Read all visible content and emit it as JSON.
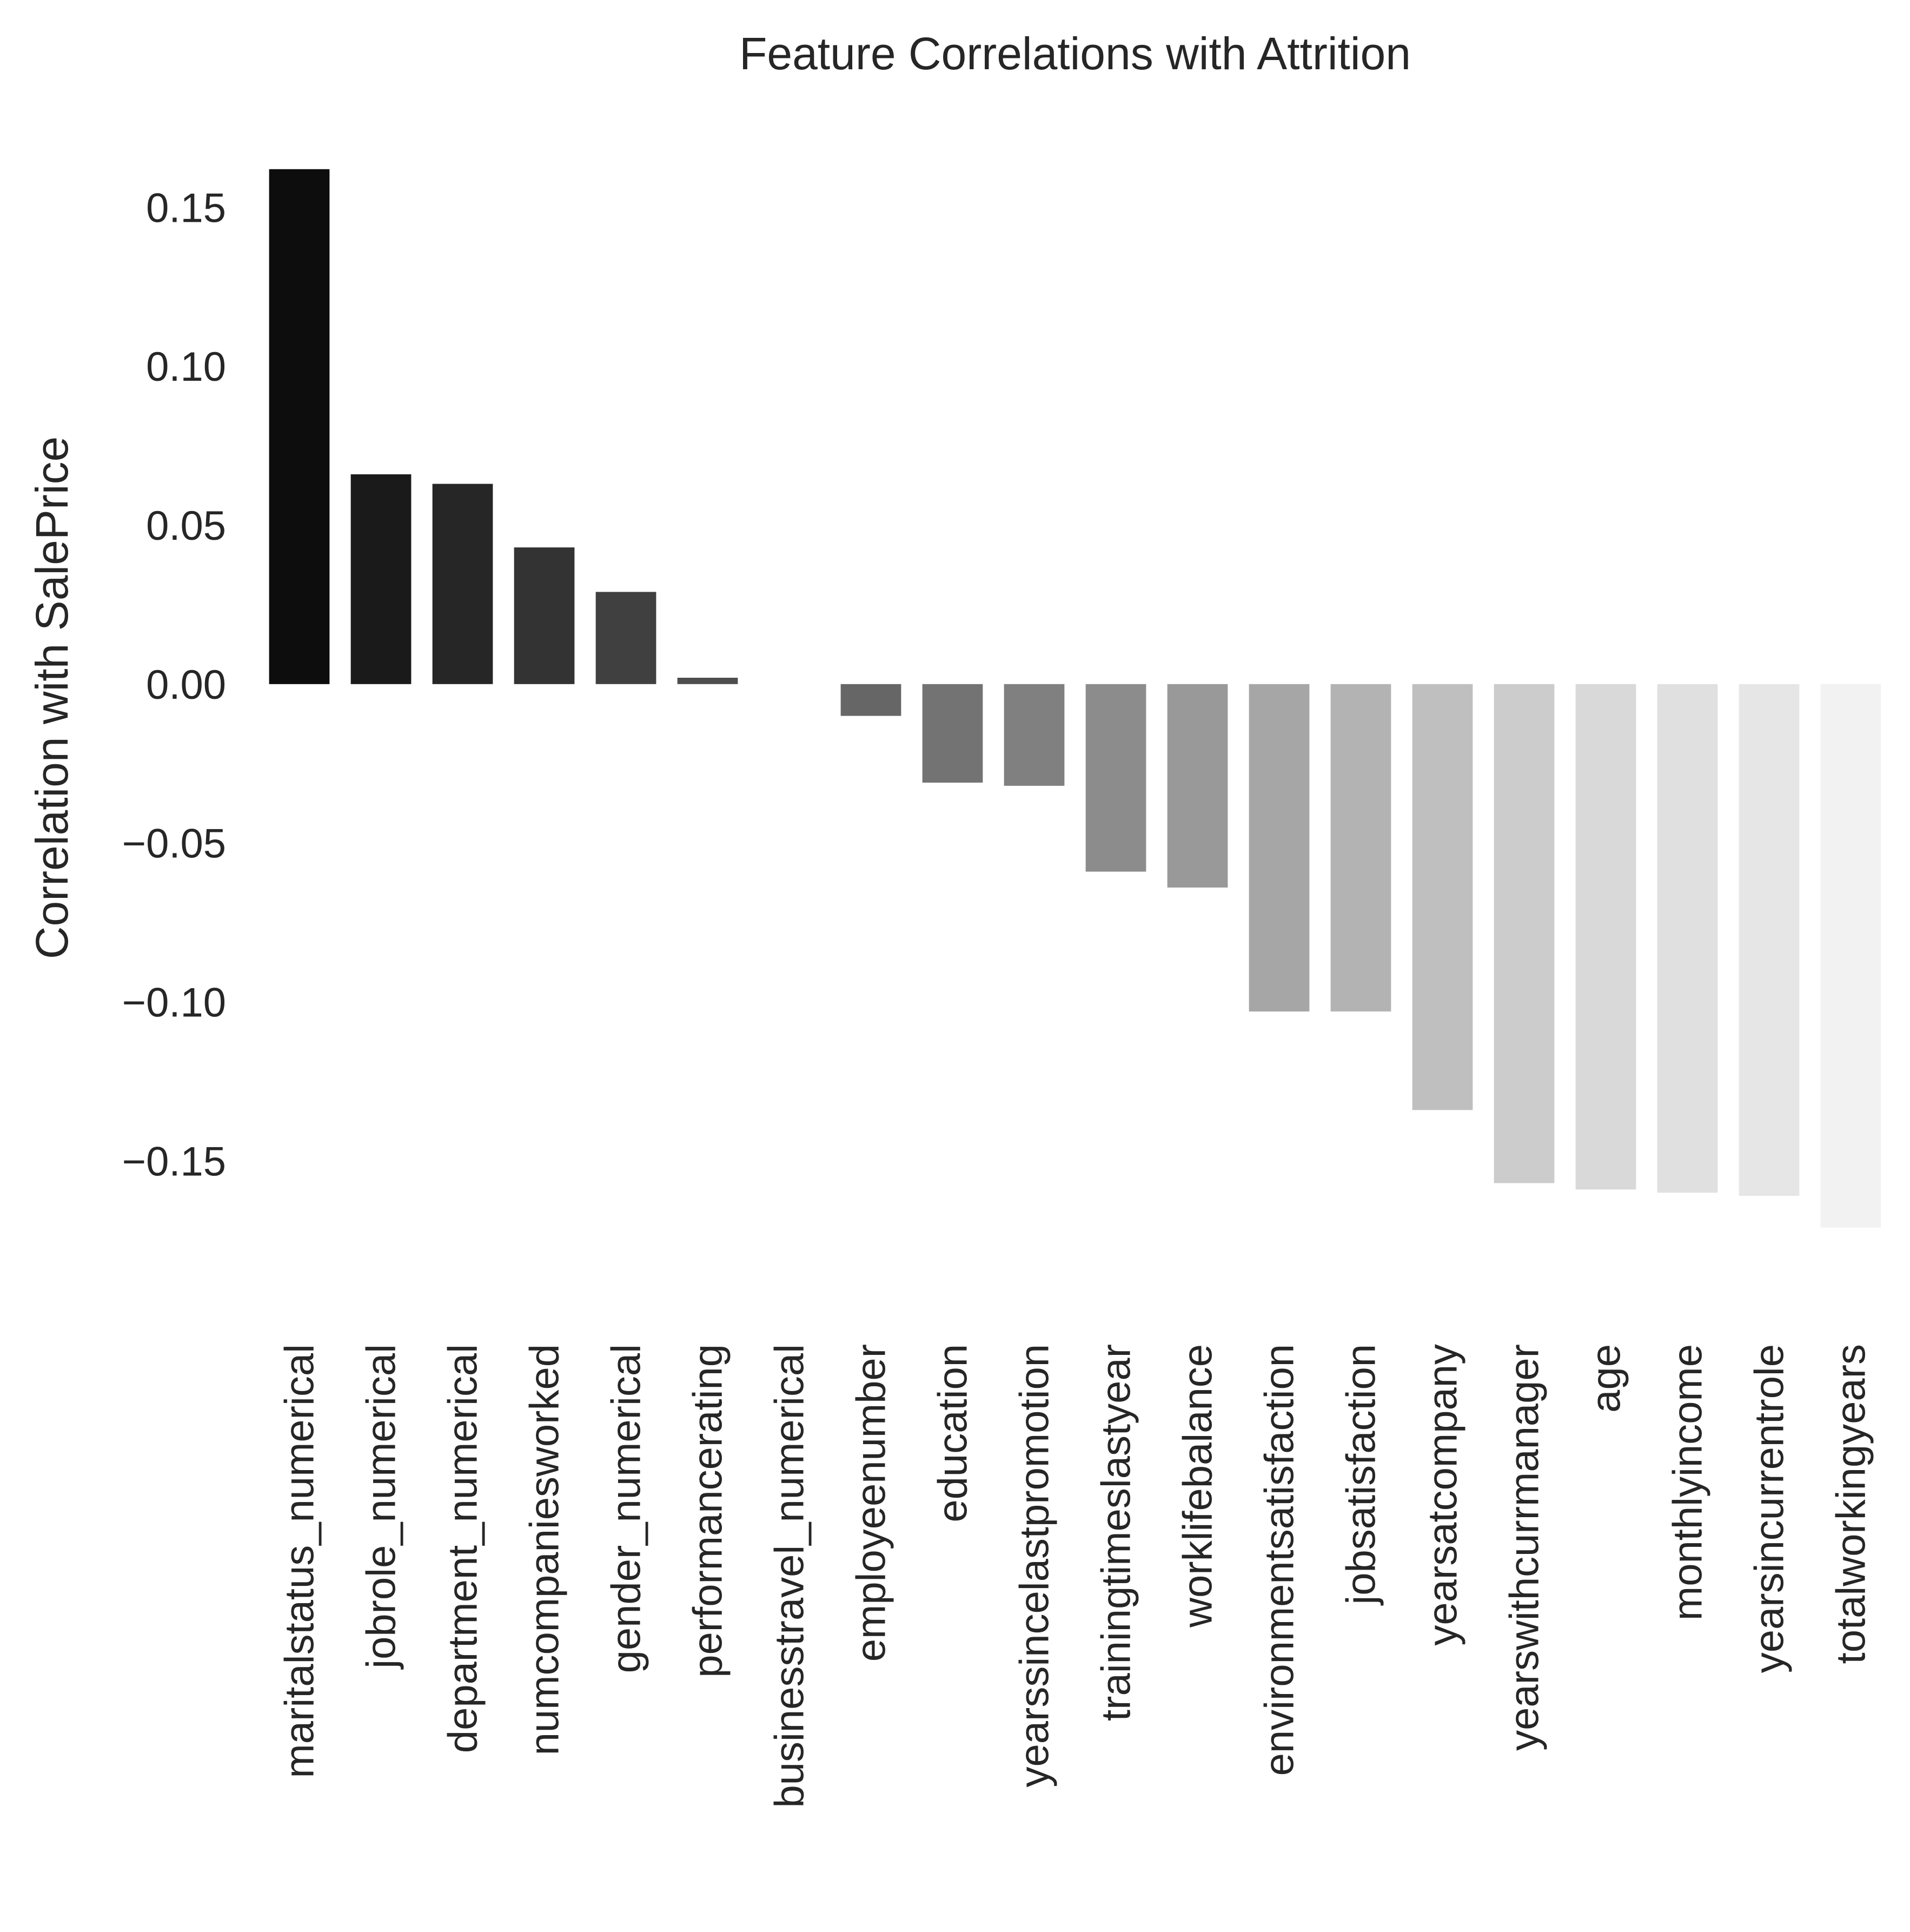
{
  "chart_data": {
    "type": "bar",
    "title": "Feature Correlations with Attrition",
    "xlabel": "",
    "ylabel": "Correlation with SalePrice",
    "ylim": [
      -0.185,
      0.172
    ],
    "yticks": [
      0.15,
      0.1,
      0.05,
      0.0,
      -0.05,
      -0.1,
      -0.15
    ],
    "ytick_labels": [
      "0.15",
      "0.10",
      "0.05",
      "0.00",
      "−0.05",
      "−0.10",
      "−0.15"
    ],
    "grid": false,
    "categories": [
      "maritalstatus_numerical",
      "jobrole_numerical",
      "department_numerical",
      "numcompaniesworked",
      "gender_numerical",
      "performancerating",
      "businesstravel_numerical",
      "employeenumber",
      "education",
      "yearssincelastpromotion",
      "trainingtimeslastyear",
      "worklifebalance",
      "environmentsatisfaction",
      "jobsatisfaction",
      "yearsatcompany",
      "yearswithcurrmanager",
      "age",
      "monthlyincome",
      "yearsincurrentrole",
      "totalworkingyears"
    ],
    "values": [
      0.162,
      0.066,
      0.063,
      0.043,
      0.029,
      0.002,
      0.0,
      -0.01,
      -0.031,
      -0.032,
      -0.059,
      -0.064,
      -0.103,
      -0.103,
      -0.134,
      -0.157,
      -0.159,
      -0.16,
      -0.161,
      -0.171
    ],
    "colors": [
      "#0d0d0d",
      "#1a1a1a",
      "#262626",
      "#333333",
      "#404040",
      "#4d4d4d",
      "#595959",
      "#666666",
      "#737373",
      "#808080",
      "#8c8c8c",
      "#999999",
      "#a6a6a6",
      "#b3b3b3",
      "#bfbfbf",
      "#cccccc",
      "#d9d9d9",
      "#e0e0e0",
      "#e6e6e6",
      "#f2f2f2"
    ]
  }
}
